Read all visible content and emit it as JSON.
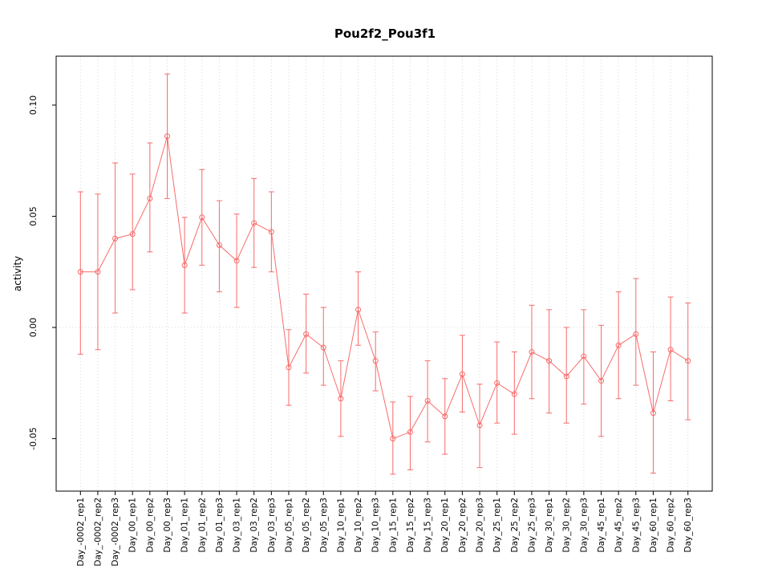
{
  "chart_data": {
    "type": "line",
    "title": "Pou2f2_Pou3f1",
    "xlabel": "",
    "ylabel": "activity",
    "ylim": [
      -0.0736,
      0.122
    ],
    "yticks": [
      -0.05,
      0,
      0.05,
      0.1
    ],
    "ytick_labels": [
      "-0.05",
      "0.00",
      "0.05",
      "0.10"
    ],
    "legend_position": "none",
    "marker": "open-circle",
    "error_bars": true,
    "series_color": "#f86b6b",
    "grid_color": "#d8d8d8",
    "grid": {
      "vertical_dotted_per_category": true,
      "horizontal_dotted_at_zero": true
    },
    "categories": [
      "Day_-0002_rep1",
      "Day_-0002_rep2",
      "Day_-0002_rep3",
      "Day_00_rep1",
      "Day_00_rep2",
      "Day_00_rep3",
      "Day_01_rep1",
      "Day_01_rep2",
      "Day_01_rep3",
      "Day_03_rep1",
      "Day_03_rep2",
      "Day_03_rep3",
      "Day_05_rep1",
      "Day_05_rep2",
      "Day_05_rep3",
      "Day_10_rep1",
      "Day_10_rep2",
      "Day_10_rep3",
      "Day_15_rep1",
      "Day_15_rep2",
      "Day_15_rep3",
      "Day_20_rep1",
      "Day_20_rep2",
      "Day_20_rep3",
      "Day_25_rep1",
      "Day_25_rep2",
      "Day_25_rep3",
      "Day_30_rep1",
      "Day_30_rep2",
      "Day_30_rep3",
      "Day_45_rep1",
      "Day_45_rep2",
      "Day_45_rep3",
      "Day_60_rep1",
      "Day_60_rep2",
      "Day_60_rep3"
    ],
    "values": [
      0.025,
      0.025,
      0.04,
      0.042,
      0.058,
      0.086,
      0.028,
      0.0495,
      0.037,
      0.03,
      0.047,
      0.043,
      -0.018,
      -0.003,
      -0.009,
      -0.032,
      0.008,
      -0.015,
      -0.05,
      -0.047,
      -0.033,
      -0.04,
      -0.021,
      -0.044,
      -0.025,
      -0.03,
      -0.011,
      -0.015,
      -0.022,
      -0.013,
      -0.024,
      -0.008,
      -0.003,
      -0.0385,
      -0.01,
      -0.015
    ],
    "error_high": [
      0.061,
      0.06,
      0.074,
      0.069,
      0.083,
      0.114,
      0.0495,
      0.071,
      0.057,
      0.051,
      0.067,
      0.061,
      -0.001,
      0.015,
      0.009,
      -0.015,
      0.025,
      -0.002,
      -0.0335,
      -0.031,
      -0.015,
      -0.023,
      -0.0035,
      -0.0255,
      -0.0065,
      -0.011,
      0.01,
      0.008,
      0.0,
      0.008,
      0.001,
      0.016,
      0.022,
      -0.011,
      0.0137,
      0.011
    ],
    "error_low": [
      -0.012,
      -0.01,
      0.0065,
      0.017,
      0.034,
      0.058,
      0.0065,
      0.028,
      0.016,
      0.009,
      0.027,
      0.025,
      -0.035,
      -0.0205,
      -0.026,
      -0.049,
      -0.008,
      -0.0285,
      -0.066,
      -0.064,
      -0.0515,
      -0.057,
      -0.038,
      -0.063,
      -0.043,
      -0.048,
      -0.032,
      -0.0385,
      -0.043,
      -0.0345,
      -0.049,
      -0.032,
      -0.026,
      -0.0655,
      -0.033,
      -0.0415
    ]
  }
}
